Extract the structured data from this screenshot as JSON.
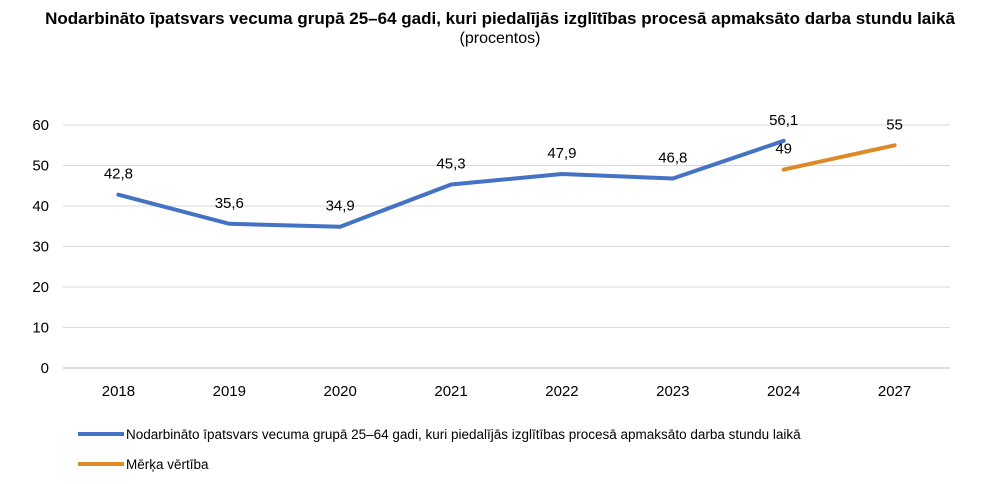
{
  "chart_data": {
    "type": "line",
    "title": "Nodarbināto īpatsvars vecuma grupā 25–64 gadi, kuri piedalījās izglītības procesā apmaksāto darba stundu laikā",
    "subtitle": "(procentos)",
    "categories": [
      "2018",
      "2019",
      "2020",
      "2021",
      "2022",
      "2023",
      "2024",
      "2027"
    ],
    "ylim": [
      0,
      60
    ],
    "yticks": [
      0,
      10,
      20,
      30,
      40,
      50,
      60
    ],
    "grid": true,
    "legend_position": "bottom",
    "series": [
      {
        "name": "Nodarbināto īpatsvars vecuma grupā 25–64 gadi, kuri piedalījās izglītības procesā apmaksāto darba stundu laikā",
        "color": "#4472C4",
        "values": [
          42.8,
          35.6,
          34.9,
          45.3,
          47.9,
          46.8,
          56.1,
          null
        ],
        "labels": [
          "42,8",
          "35,6",
          "34,9",
          "45,3",
          "47,9",
          "46,8",
          "56,1",
          ""
        ]
      },
      {
        "name": "Mērķa vērtība",
        "color": "#DD8A26",
        "values": [
          null,
          null,
          null,
          null,
          null,
          null,
          49,
          55
        ],
        "labels": [
          "",
          "",
          "",
          "",
          "",
          "",
          "49",
          "55"
        ]
      }
    ]
  }
}
